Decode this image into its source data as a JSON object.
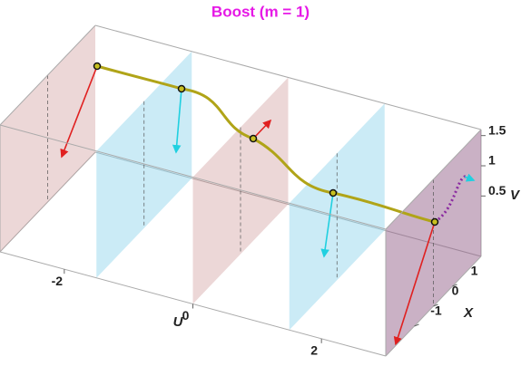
{
  "chart_data": {
    "type": "box3d",
    "title": "Boost (m = 1)",
    "u_label": "U",
    "x_label": "X",
    "v_label": "V",
    "ulim": [
      -3,
      3
    ],
    "xlim": [
      -2.5,
      2.5
    ],
    "vlim": [
      -0.5,
      1.6
    ],
    "uticks": [
      -2,
      0,
      2
    ],
    "xticks": [
      -1,
      0,
      1
    ],
    "vticks": [
      0.5,
      1,
      1.5
    ]
  }
}
